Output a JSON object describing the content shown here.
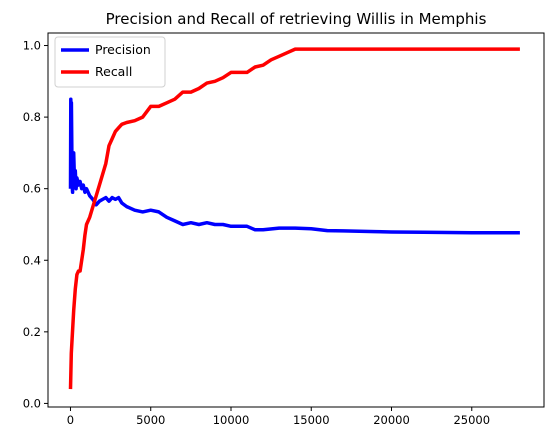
{
  "chart_data": {
    "type": "line",
    "title": "Precision and Recall of retrieving Willis in Memphis",
    "xlabel": "",
    "ylabel": "",
    "xlim": [
      -1400,
      29500
    ],
    "ylim": [
      -0.01,
      1.035
    ],
    "xticks": [
      0,
      5000,
      10000,
      15000,
      20000,
      25000
    ],
    "yticks": [
      0.0,
      0.2,
      0.4,
      0.6,
      0.8,
      1.0
    ],
    "grid": false,
    "legend_position": "top-left",
    "series": [
      {
        "name": "Precision",
        "color": "#0000ff",
        "points": [
          [
            0,
            0.6
          ],
          [
            20,
            0.85
          ],
          [
            40,
            0.78
          ],
          [
            60,
            0.84
          ],
          [
            80,
            0.72
          ],
          [
            100,
            0.61
          ],
          [
            130,
            0.59
          ],
          [
            160,
            0.67
          ],
          [
            200,
            0.7
          ],
          [
            250,
            0.62
          ],
          [
            300,
            0.65
          ],
          [
            350,
            0.6
          ],
          [
            400,
            0.63
          ],
          [
            500,
            0.61
          ],
          [
            600,
            0.62
          ],
          [
            700,
            0.6
          ],
          [
            800,
            0.61
          ],
          [
            900,
            0.59
          ],
          [
            1000,
            0.6
          ],
          [
            1200,
            0.58
          ],
          [
            1400,
            0.57
          ],
          [
            1600,
            0.555
          ],
          [
            1800,
            0.565
          ],
          [
            2000,
            0.57
          ],
          [
            2200,
            0.575
          ],
          [
            2400,
            0.565
          ],
          [
            2600,
            0.575
          ],
          [
            2800,
            0.57
          ],
          [
            3000,
            0.575
          ],
          [
            3200,
            0.56
          ],
          [
            3500,
            0.55
          ],
          [
            4000,
            0.54
          ],
          [
            4500,
            0.535
          ],
          [
            5000,
            0.54
          ],
          [
            5500,
            0.535
          ],
          [
            6000,
            0.52
          ],
          [
            6500,
            0.51
          ],
          [
            7000,
            0.5
          ],
          [
            7500,
            0.505
          ],
          [
            8000,
            0.5
          ],
          [
            8500,
            0.505
          ],
          [
            9000,
            0.5
          ],
          [
            9500,
            0.5
          ],
          [
            10000,
            0.495
          ],
          [
            11000,
            0.495
          ],
          [
            11500,
            0.485
          ],
          [
            12000,
            0.485
          ],
          [
            13000,
            0.49
          ],
          [
            14000,
            0.49
          ],
          [
            15000,
            0.488
          ],
          [
            16000,
            0.483
          ],
          [
            17000,
            0.482
          ],
          [
            18000,
            0.481
          ],
          [
            19000,
            0.48
          ],
          [
            20000,
            0.479
          ],
          [
            22000,
            0.478
          ],
          [
            25000,
            0.477
          ],
          [
            28000,
            0.477
          ]
        ]
      },
      {
        "name": "Recall",
        "color": "#ff0000",
        "points": [
          [
            0,
            0.04
          ],
          [
            50,
            0.14
          ],
          [
            100,
            0.18
          ],
          [
            150,
            0.22
          ],
          [
            200,
            0.26
          ],
          [
            300,
            0.32
          ],
          [
            400,
            0.36
          ],
          [
            500,
            0.37
          ],
          [
            600,
            0.37
          ],
          [
            700,
            0.4
          ],
          [
            800,
            0.43
          ],
          [
            900,
            0.47
          ],
          [
            1000,
            0.5
          ],
          [
            1200,
            0.52
          ],
          [
            1400,
            0.55
          ],
          [
            1600,
            0.58
          ],
          [
            1800,
            0.61
          ],
          [
            2000,
            0.64
          ],
          [
            2200,
            0.67
          ],
          [
            2400,
            0.72
          ],
          [
            2600,
            0.74
          ],
          [
            2800,
            0.76
          ],
          [
            3000,
            0.77
          ],
          [
            3200,
            0.78
          ],
          [
            3500,
            0.785
          ],
          [
            4000,
            0.79
          ],
          [
            4500,
            0.8
          ],
          [
            5000,
            0.83
          ],
          [
            5500,
            0.83
          ],
          [
            6000,
            0.84
          ],
          [
            6500,
            0.85
          ],
          [
            7000,
            0.87
          ],
          [
            7500,
            0.87
          ],
          [
            8000,
            0.88
          ],
          [
            8500,
            0.895
          ],
          [
            9000,
            0.9
          ],
          [
            9500,
            0.91
          ],
          [
            10000,
            0.925
          ],
          [
            11000,
            0.925
          ],
          [
            11500,
            0.94
          ],
          [
            12000,
            0.945
          ],
          [
            12500,
            0.96
          ],
          [
            13000,
            0.97
          ],
          [
            13500,
            0.98
          ],
          [
            14000,
            0.99
          ],
          [
            15000,
            0.99
          ],
          [
            20000,
            0.99
          ],
          [
            25000,
            0.99
          ],
          [
            28000,
            0.99
          ]
        ]
      }
    ]
  }
}
